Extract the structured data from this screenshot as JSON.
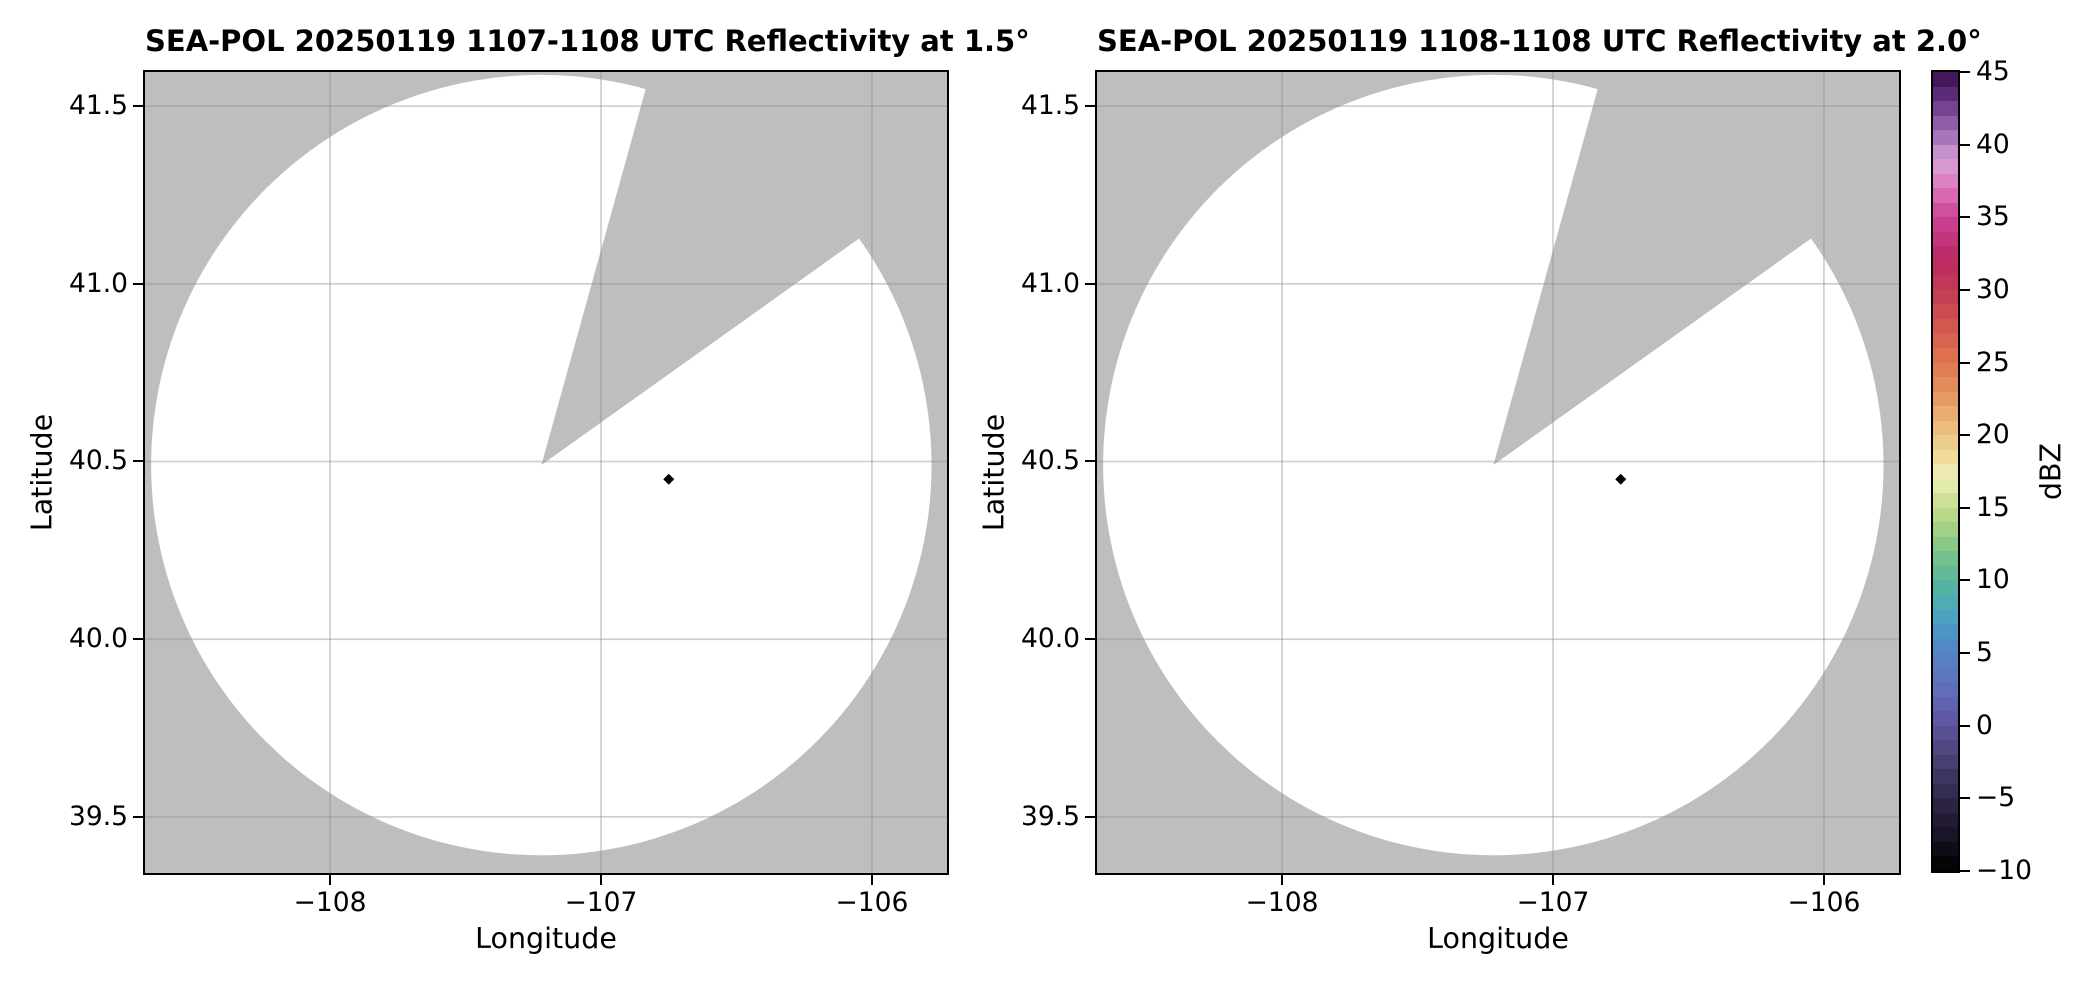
{
  "colors": {
    "background": "#FFFFFF",
    "masked_region": "#BEBEBE",
    "coverage_fill": "#FFFFFF",
    "grid": "rgba(140,140,140,0.40)",
    "spine": "#000000",
    "text": "#000000",
    "marker": "#000000"
  },
  "panels": [
    {
      "title": "SEA-POL 20250119 1107-1108 UTC Reflectivity at 1.5°",
      "xlabel": "Longitude",
      "ylabel": "Latitude",
      "x_ticks": [
        {
          "value": -108,
          "label": "−108"
        },
        {
          "value": -107,
          "label": "−107"
        },
        {
          "value": -106,
          "label": "−106"
        }
      ],
      "y_ticks": [
        {
          "value": 41.5,
          "label": "41.5"
        },
        {
          "value": 41.0,
          "label": "41.0"
        },
        {
          "value": 40.5,
          "label": "40.5"
        },
        {
          "value": 40.0,
          "label": "40.0"
        },
        {
          "value": 39.5,
          "label": "39.5"
        }
      ]
    },
    {
      "title": "SEA-POL 20250119 1108-1108 UTC Reflectivity at 2.0°",
      "xlabel": "Longitude",
      "ylabel": "Latitude",
      "x_ticks": [
        {
          "value": -108,
          "label": "−108"
        },
        {
          "value": -107,
          "label": "−107"
        },
        {
          "value": -106,
          "label": "−106"
        }
      ],
      "y_ticks": [
        {
          "value": 41.5,
          "label": "41.5"
        },
        {
          "value": 41.0,
          "label": "41.0"
        },
        {
          "value": 40.5,
          "label": "40.5"
        },
        {
          "value": 40.0,
          "label": "40.0"
        },
        {
          "value": 39.5,
          "label": "39.5"
        }
      ]
    }
  ],
  "colorbar": {
    "label": "dBZ",
    "min": -10,
    "max": 45,
    "band_step_dbz": 1,
    "ticks": [
      {
        "value": 45,
        "label": "45"
      },
      {
        "value": 40,
        "label": "40"
      },
      {
        "value": 35,
        "label": "35"
      },
      {
        "value": 30,
        "label": "30"
      },
      {
        "value": 25,
        "label": "25"
      },
      {
        "value": 20,
        "label": "20"
      },
      {
        "value": 15,
        "label": "15"
      },
      {
        "value": 10,
        "label": "10"
      },
      {
        "value": 5,
        "label": "5"
      },
      {
        "value": 0,
        "label": "0"
      },
      {
        "value": -5,
        "label": "−5"
      },
      {
        "value": -10,
        "label": "−10"
      }
    ],
    "stops": [
      [
        -10,
        "#000000"
      ],
      [
        -8,
        "#14101F"
      ],
      [
        -6,
        "#261E3A"
      ],
      [
        -4,
        "#383058"
      ],
      [
        -2,
        "#4C4479"
      ],
      [
        0,
        "#5C549B"
      ],
      [
        2,
        "#6368B5"
      ],
      [
        4,
        "#5A7AC3"
      ],
      [
        6,
        "#4E8EC8"
      ],
      [
        8,
        "#4BA8BD"
      ],
      [
        10,
        "#5AB69C"
      ],
      [
        12,
        "#7EC489"
      ],
      [
        14,
        "#ACD583"
      ],
      [
        16,
        "#D9E49B"
      ],
      [
        17,
        "#EDEFC0"
      ],
      [
        18,
        "#F0E3A6"
      ],
      [
        20,
        "#ECC682"
      ],
      [
        22,
        "#E6A468"
      ],
      [
        24,
        "#E28355"
      ],
      [
        26,
        "#DB6A50"
      ],
      [
        28,
        "#D04F50"
      ],
      [
        30,
        "#C13B53"
      ],
      [
        32,
        "#BB2962"
      ],
      [
        34,
        "#C53A86"
      ],
      [
        35,
        "#CC4493"
      ],
      [
        36,
        "#D65CA9"
      ],
      [
        37,
        "#DB73BB"
      ],
      [
        38,
        "#DB90CB"
      ],
      [
        39,
        "#D7A0D5"
      ],
      [
        40,
        "#B480C4"
      ],
      [
        41,
        "#9C68B3"
      ],
      [
        42,
        "#834F9D"
      ],
      [
        43,
        "#673783"
      ],
      [
        44,
        "#4F2167"
      ],
      [
        45,
        "#390D4F"
      ]
    ]
  },
  "chart_data": {
    "type": "heatmap",
    "subtype": "radar-ppi-reflectivity",
    "description": "Two PPI sweeps of SEA-POL radar reflectivity on a lon/lat map. Scanned coverage is a disk around the radar with one unscanned azimuthal sector (gray). Only a single low-reflectivity echo gate (black diamond) is present in each sweep.",
    "grid": true,
    "legend": false,
    "panels": [
      {
        "title": "SEA-POL 20250119 1107-1108 UTC Reflectivity at 1.5°",
        "radar": "SEA-POL",
        "date": "20250119",
        "time_utc": "1107-1108",
        "elevation_deg": 1.5,
        "xlabel": "Longitude",
        "ylabel": "Latitude",
        "xlim": [
          -108.683,
          -105.723
        ],
        "ylim": [
          39.342,
          41.596
        ],
        "xticks": [
          -108,
          -107,
          -106
        ],
        "yticks": [
          41.5,
          41.0,
          40.5,
          40.0,
          39.5
        ],
        "radar_center": {
          "lon": -107.22,
          "lat": 40.49
        },
        "coverage_radius_deg_lon": 1.44,
        "coverage_radius_deg_lat": 1.1,
        "missing_sector_azimuth_deg": [
          15.5,
          54.5
        ],
        "echoes": [
          {
            "lon": -106.75,
            "lat": 40.45,
            "dbz_approx": -10,
            "marker": "diamond",
            "color": "#000000"
          }
        ]
      },
      {
        "title": "SEA-POL 20250119 1108-1108 UTC Reflectivity at 2.0°",
        "radar": "SEA-POL",
        "date": "20250119",
        "time_utc": "1108-1108",
        "elevation_deg": 2.0,
        "xlabel": "Longitude",
        "ylabel": "Latitude",
        "xlim": [
          -108.683,
          -105.723
        ],
        "ylim": [
          39.342,
          41.596
        ],
        "xticks": [
          -108,
          -107,
          -106
        ],
        "yticks": [
          41.5,
          41.0,
          40.5,
          40.0,
          39.5
        ],
        "radar_center": {
          "lon": -107.22,
          "lat": 40.49
        },
        "coverage_radius_deg_lon": 1.44,
        "coverage_radius_deg_lat": 1.1,
        "missing_sector_azimuth_deg": [
          15.5,
          54.5
        ],
        "echoes": [
          {
            "lon": -106.75,
            "lat": 40.45,
            "dbz_approx": -10,
            "marker": "diamond",
            "color": "#000000"
          }
        ]
      }
    ],
    "colorbar": {
      "label": "dBZ",
      "range": [
        -10,
        45
      ],
      "ticks": [
        45,
        40,
        35,
        30,
        25,
        20,
        15,
        10,
        5,
        0,
        -5,
        -10
      ]
    }
  }
}
